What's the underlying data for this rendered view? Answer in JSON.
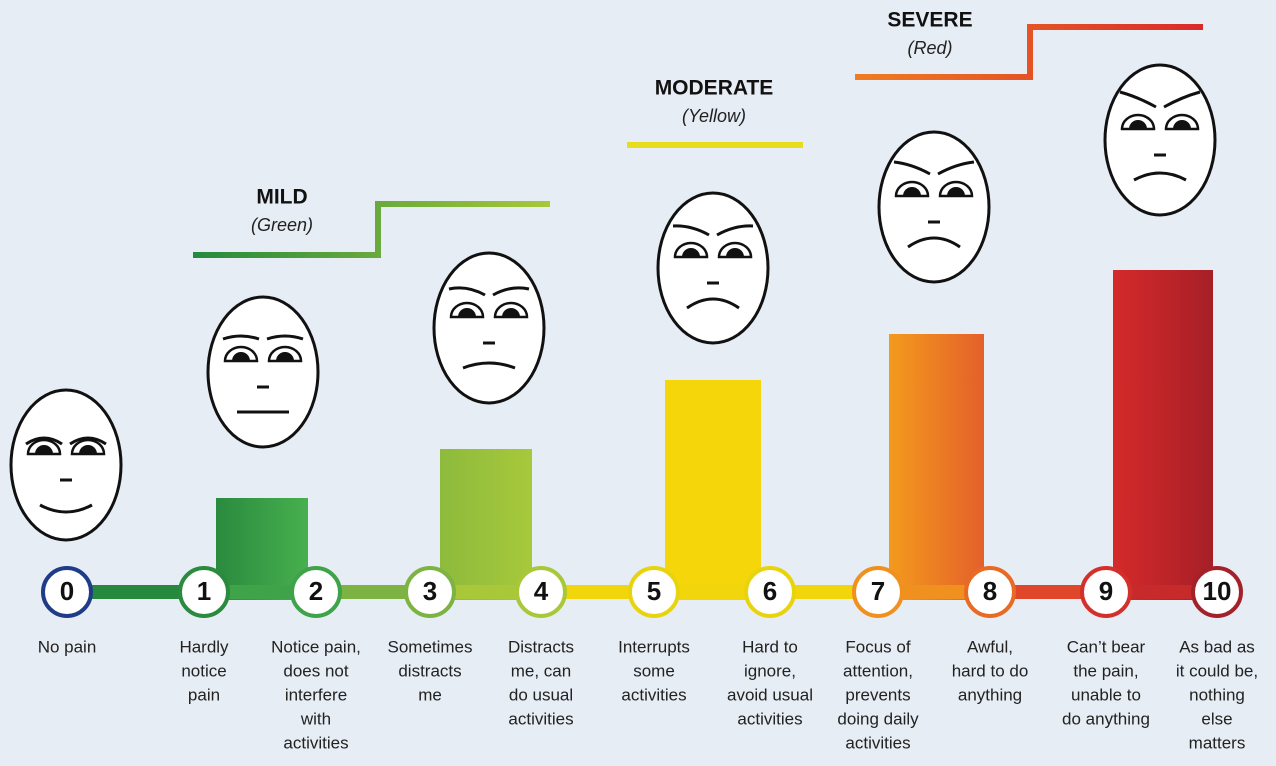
{
  "groups": [
    {
      "name": "MILD",
      "color_name": "(Green)"
    },
    {
      "name": "MODERATE",
      "color_name": "(Yellow)"
    },
    {
      "name": "SEVERE",
      "color_name": "(Red)"
    }
  ],
  "levels": [
    {
      "number": "0",
      "description": [
        "No pain"
      ]
    },
    {
      "number": "1",
      "description": [
        "Hardly",
        "notice",
        "pain"
      ]
    },
    {
      "number": "2",
      "description": [
        "Notice pain,",
        "does not",
        "interfere",
        "with",
        "activities"
      ]
    },
    {
      "number": "3",
      "description": [
        "Sometimes",
        "distracts",
        "me"
      ]
    },
    {
      "number": "4",
      "description": [
        "Distracts",
        "me, can",
        "do usual",
        "activities"
      ]
    },
    {
      "number": "5",
      "description": [
        "Interrupts",
        "some",
        "activities"
      ]
    },
    {
      "number": "6",
      "description": [
        "Hard to",
        "ignore,",
        "avoid usual",
        "activities"
      ]
    },
    {
      "number": "7",
      "description": [
        "Focus of",
        "attention,",
        "prevents",
        "doing daily",
        "activities"
      ]
    },
    {
      "number": "8",
      "description": [
        "Awful,",
        "hard to do",
        "anything"
      ]
    },
    {
      "number": "9",
      "description": [
        "Can’t bear",
        "the pain,",
        "unable to",
        "do anything"
      ]
    },
    {
      "number": "10",
      "description": [
        "As bad as",
        "it could be,",
        "nothing",
        "else",
        "matters"
      ]
    }
  ]
}
